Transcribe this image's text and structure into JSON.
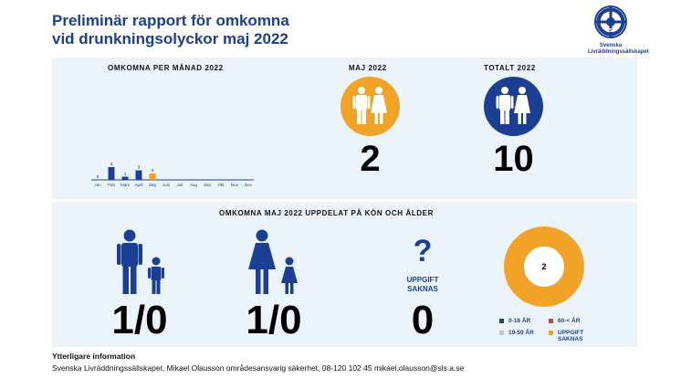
{
  "header": {
    "title_line1": "Preliminär rapport för omkomna",
    "title_line2": "vid drunkningsolyckor maj 2022",
    "logo_line1": "Svenska",
    "logo_line2": "Livräddningssällskapet",
    "logo_letters": [
      "S",
      "L",
      "S"
    ]
  },
  "top": {
    "monthly_title": "OMKOMNA PER MÅNAD 2022",
    "may_title": "MAJ 2022",
    "may_value": "2",
    "total_title": "TOTALT 2022",
    "total_value": "10"
  },
  "chart_data": {
    "type": "bar",
    "title": "OMKOMNA PER MÅNAD 2022",
    "categories": [
      "Jan",
      "Feb",
      "Mars",
      "April",
      "Maj",
      "Juni",
      "Juli",
      "Aug",
      "Sep",
      "Okt",
      "Nov",
      "Dec"
    ],
    "values": [
      0,
      4,
      1,
      3,
      2,
      null,
      null,
      null,
      null,
      null,
      null,
      null
    ],
    "value_labels": [
      "0",
      "4",
      "1",
      "3",
      "2",
      "",
      "",
      "",
      "",
      "",
      "",
      ""
    ],
    "highlight_index": 4,
    "colors": {
      "default": "#1c3f94",
      "highlight": "#f0a326"
    },
    "ylim": [
      0,
      4
    ]
  },
  "bottom": {
    "title": "OMKOMNA MAJ 2022 UPPDELAT PÅ KÖN OCH ÅLDER",
    "men_value": "1/0",
    "women_value": "1/0",
    "unknown_symbol": "?",
    "unknown_label_line1": "UPPGIFT",
    "unknown_label_line2": "SAKNAS",
    "unknown_value": "0",
    "donut_center": "2",
    "legend": [
      {
        "label": "0-18 ÅR",
        "color": "#1c3f94"
      },
      {
        "label": "60-< ÅR",
        "color": "#e03a2e"
      },
      {
        "label": "19-59 ÅR",
        "color": "#a9cdef"
      },
      {
        "label_line1": "UPPGIFT",
        "label_line2": "SAKNAS",
        "color": "#f0a326"
      }
    ]
  },
  "footer": {
    "heading": "Ytterligare information",
    "text": "Svenska Livräddningssällskapet, Mikael Olausson områdesansvarig säkerhet, 08-120 102 45 mikael.olausson@sls.a.se"
  },
  "icons": [
    "family-icon",
    "man-boy-icon",
    "woman-girl-icon",
    "sls-logo-icon"
  ],
  "colors": {
    "brand_blue": "#1c3f94",
    "orange": "#f0a326",
    "panel": "#ebf4fb"
  }
}
